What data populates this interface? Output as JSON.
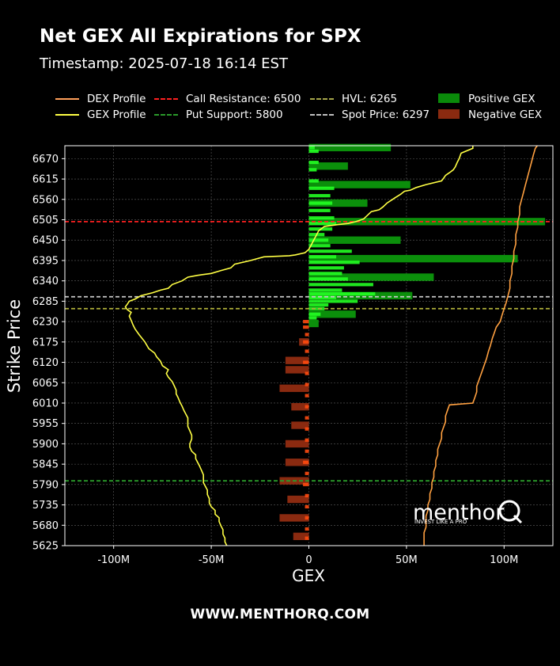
{
  "header": {
    "title": "Net GEX All Expirations for SPX",
    "subtitle": "Timestamp: 2025-07-18 16:14 EST"
  },
  "footer": {
    "website": "WWW.MENTHORQ.COM"
  },
  "logo": {
    "name": "menthor",
    "letter": "Q",
    "tagline": "INVEST LIKE A PRO"
  },
  "colors": {
    "background": "#000000",
    "dex": "#ffa040",
    "gex": "#ffff44",
    "call_resistance": "#ff2020",
    "put_support": "#2a9a2a",
    "hvl": "#b0b03a",
    "spot": "#c8c8c8",
    "positive_gex": "#0a8a0a",
    "negative_gex": "#8a2a10"
  },
  "legend": [
    {
      "label": "DEX Profile",
      "kind": "line",
      "color": "#ff9f5a"
    },
    {
      "label": "GEX Profile",
      "kind": "line",
      "color": "#ffff44"
    },
    {
      "label": "Call Resistance: 6500",
      "kind": "dash",
      "color": "#ff2020"
    },
    {
      "label": "Put Support: 5800",
      "kind": "dash",
      "color": "#2a9a2a"
    },
    {
      "label": "HVL: 6265",
      "kind": "dash",
      "color": "#a6a64a"
    },
    {
      "label": "Spot Price: 6297",
      "kind": "dash",
      "color": "#c0c0c0"
    },
    {
      "label": "Positive GEX",
      "kind": "box",
      "color": "#0a8a0a"
    },
    {
      "label": "Negative GEX",
      "kind": "box",
      "color": "#8a2a10"
    }
  ],
  "chart_data": {
    "type": "bar",
    "orientation": "horizontal",
    "xlabel": "GEX",
    "ylabel": "Strike Price",
    "xlim": [
      -125000000,
      125000000
    ],
    "ylim": [
      5625,
      6705
    ],
    "x_ticks": [
      -100000000,
      -50000000,
      0,
      50000000,
      100000000
    ],
    "x_tick_labels": [
      "-100M",
      "-50M",
      "0",
      "50M",
      "100M"
    ],
    "y_ticks": [
      5625,
      5680,
      5735,
      5790,
      5845,
      5900,
      5955,
      6010,
      6065,
      6120,
      6175,
      6230,
      6285,
      6340,
      6395,
      6450,
      6505,
      6560,
      6615,
      6670
    ],
    "grid": true,
    "levels": {
      "call_resistance": 6500,
      "put_support": 5800,
      "hvl": 6265,
      "spot_price": 6297
    },
    "aggregate_bars": [
      {
        "strike": 6700,
        "value": 42000000
      },
      {
        "strike": 6650,
        "value": 20000000
      },
      {
        "strike": 6600,
        "value": 52000000
      },
      {
        "strike": 6550,
        "value": 30000000
      },
      {
        "strike": 6500,
        "value": 121000000
      },
      {
        "strike": 6450,
        "value": 47000000
      },
      {
        "strike": 6400,
        "value": 107000000
      },
      {
        "strike": 6350,
        "value": 64000000
      },
      {
        "strike": 6300,
        "value": 53000000
      },
      {
        "strike": 6250,
        "value": 24000000
      },
      {
        "strike": 6225,
        "value": 5000000
      },
      {
        "strike": 6175,
        "value": -5000000
      },
      {
        "strike": 6125,
        "value": -12000000
      },
      {
        "strike": 6100,
        "value": -12000000
      },
      {
        "strike": 6050,
        "value": -15000000
      },
      {
        "strike": 6000,
        "value": -9000000
      },
      {
        "strike": 5950,
        "value": -9000000
      },
      {
        "strike": 5900,
        "value": -12000000
      },
      {
        "strike": 5850,
        "value": -12000000
      },
      {
        "strike": 5800,
        "value": -15000000
      },
      {
        "strike": 5750,
        "value": -11000000
      },
      {
        "strike": 5700,
        "value": -15000000
      },
      {
        "strike": 5650,
        "value": -8000000
      }
    ],
    "strike_bars": [
      {
        "strike": 6700,
        "value": 3000000
      },
      {
        "strike": 6690,
        "value": 5000000
      },
      {
        "strike": 6660,
        "value": 5000000
      },
      {
        "strike": 6640,
        "value": 4000000
      },
      {
        "strike": 6610,
        "value": 5000000
      },
      {
        "strike": 6590,
        "value": 13000000
      },
      {
        "strike": 6570,
        "value": 11000000
      },
      {
        "strike": 6550,
        "value": 12000000
      },
      {
        "strike": 6530,
        "value": 11000000
      },
      {
        "strike": 6510,
        "value": 13000000
      },
      {
        "strike": 6495,
        "value": 14000000
      },
      {
        "strike": 6480,
        "value": 12000000
      },
      {
        "strike": 6465,
        "value": 8000000
      },
      {
        "strike": 6450,
        "value": 10000000
      },
      {
        "strike": 6435,
        "value": 11000000
      },
      {
        "strike": 6420,
        "value": 22000000
      },
      {
        "strike": 6405,
        "value": 14000000
      },
      {
        "strike": 6390,
        "value": 26000000
      },
      {
        "strike": 6375,
        "value": 18000000
      },
      {
        "strike": 6360,
        "value": 17000000
      },
      {
        "strike": 6345,
        "value": 20000000
      },
      {
        "strike": 6330,
        "value": 33000000
      },
      {
        "strike": 6315,
        "value": 17000000
      },
      {
        "strike": 6305,
        "value": 34000000
      },
      {
        "strike": 6295,
        "value": 14000000
      },
      {
        "strike": 6285,
        "value": 25000000
      },
      {
        "strike": 6275,
        "value": 10000000
      },
      {
        "strike": 6265,
        "value": 8000000
      },
      {
        "strike": 6250,
        "value": 6000000
      },
      {
        "strike": 6240,
        "value": 4000000
      },
      {
        "strike": 6230,
        "value": -3000000
      },
      {
        "strike": 6215,
        "value": -3000000
      },
      {
        "strike": 6195,
        "value": -2000000
      },
      {
        "strike": 6175,
        "value": -3000000
      },
      {
        "strike": 6150,
        "value": -2000000
      },
      {
        "strike": 6120,
        "value": -3000000
      },
      {
        "strike": 6090,
        "value": -2000000
      },
      {
        "strike": 6060,
        "value": -2000000
      },
      {
        "strike": 6030,
        "value": -2000000
      },
      {
        "strike": 6000,
        "value": -2000000
      },
      {
        "strike": 5970,
        "value": -2000000
      },
      {
        "strike": 5940,
        "value": -2000000
      },
      {
        "strike": 5910,
        "value": -2000000
      },
      {
        "strike": 5880,
        "value": -2000000
      },
      {
        "strike": 5850,
        "value": -3000000
      },
      {
        "strike": 5820,
        "value": -2000000
      },
      {
        "strike": 5790,
        "value": -3000000
      },
      {
        "strike": 5760,
        "value": -2000000
      },
      {
        "strike": 5730,
        "value": -2000000
      },
      {
        "strike": 5700,
        "value": -2000000
      },
      {
        "strike": 5670,
        "value": -2000000
      },
      {
        "strike": 5645,
        "value": -2000000
      }
    ],
    "series": [
      {
        "name": "GEX Profile",
        "points": [
          [
            84000000,
            6705
          ],
          [
            84000000,
            6698
          ],
          [
            78000000,
            6685
          ],
          [
            77000000,
            6670
          ],
          [
            76000000,
            6660
          ],
          [
            75000000,
            6648
          ],
          [
            74000000,
            6640
          ],
          [
            72000000,
            6632
          ],
          [
            70000000,
            6625
          ],
          [
            69000000,
            6617
          ],
          [
            68000000,
            6610
          ],
          [
            60000000,
            6600
          ],
          [
            55000000,
            6592
          ],
          [
            52000000,
            6585
          ],
          [
            49000000,
            6582
          ],
          [
            47000000,
            6574
          ],
          [
            44000000,
            6564
          ],
          [
            42000000,
            6557
          ],
          [
            40000000,
            6550
          ],
          [
            39000000,
            6545
          ],
          [
            38000000,
            6540
          ],
          [
            36000000,
            6532
          ],
          [
            32000000,
            6527
          ],
          [
            30000000,
            6517
          ],
          [
            28000000,
            6507
          ],
          [
            24000000,
            6500
          ],
          [
            20000000,
            6495
          ],
          [
            15000000,
            6492
          ],
          [
            8000000,
            6487
          ],
          [
            5000000,
            6475
          ],
          [
            4000000,
            6465
          ],
          [
            3000000,
            6455
          ],
          [
            2000000,
            6445
          ],
          [
            1000000,
            6435
          ],
          [
            0,
            6425
          ],
          [
            -2000000,
            6416
          ],
          [
            -7000000,
            6410
          ],
          [
            -10000000,
            6408
          ],
          [
            -23000000,
            6405
          ],
          [
            -30000000,
            6395
          ],
          [
            -38000000,
            6385
          ],
          [
            -40000000,
            6375
          ],
          [
            -45000000,
            6368
          ],
          [
            -50000000,
            6360
          ],
          [
            -57000000,
            6355
          ],
          [
            -62000000,
            6350
          ],
          [
            -65000000,
            6340
          ],
          [
            -70000000,
            6330
          ],
          [
            -72000000,
            6320
          ],
          [
            -76000000,
            6315
          ],
          [
            -80000000,
            6308
          ],
          [
            -86000000,
            6300
          ],
          [
            -89000000,
            6291
          ],
          [
            -92000000,
            6285
          ],
          [
            -93000000,
            6277
          ],
          [
            -94000000,
            6270
          ],
          [
            -93000000,
            6262
          ],
          [
            -91000000,
            6255
          ],
          [
            -92000000,
            6245
          ],
          [
            -91000000,
            6233
          ],
          [
            -90000000,
            6220
          ],
          [
            -89000000,
            6210
          ],
          [
            -87000000,
            6195
          ],
          [
            -84000000,
            6175
          ],
          [
            -82000000,
            6157
          ],
          [
            -79000000,
            6145
          ],
          [
            -78000000,
            6135
          ],
          [
            -76000000,
            6123
          ],
          [
            -75000000,
            6111
          ],
          [
            -72000000,
            6100
          ],
          [
            -73000000,
            6090
          ],
          [
            -72000000,
            6080
          ],
          [
            -70000000,
            6068
          ],
          [
            -69000000,
            6057
          ],
          [
            -68000000,
            6045
          ],
          [
            -68000000,
            6035
          ],
          [
            -67000000,
            6025
          ],
          [
            -66000000,
            6012
          ],
          [
            -65000000,
            6002
          ],
          [
            -64000000,
            5990
          ],
          [
            -63000000,
            5980
          ],
          [
            -62000000,
            5970
          ],
          [
            -62000000,
            5958
          ],
          [
            -62000000,
            5947
          ],
          [
            -61000000,
            5935
          ],
          [
            -60000000,
            5923
          ],
          [
            -60000000,
            5913
          ],
          [
            -61000000,
            5900
          ],
          [
            -61000000,
            5891
          ],
          [
            -60000000,
            5880
          ],
          [
            -58000000,
            5870
          ],
          [
            -58000000,
            5860
          ],
          [
            -57000000,
            5850
          ],
          [
            -56000000,
            5840
          ],
          [
            -55000000,
            5828
          ],
          [
            -54000000,
            5816
          ],
          [
            -54000000,
            5806
          ],
          [
            -54000000,
            5795
          ],
          [
            -53000000,
            5785
          ],
          [
            -52000000,
            5775
          ],
          [
            -52000000,
            5763
          ],
          [
            -51000000,
            5752
          ],
          [
            -51000000,
            5740
          ],
          [
            -50000000,
            5730
          ],
          [
            -48000000,
            5720
          ],
          [
            -48000000,
            5710
          ],
          [
            -46000000,
            5700
          ],
          [
            -46000000,
            5690
          ],
          [
            -45000000,
            5678
          ],
          [
            -44000000,
            5668
          ],
          [
            -44000000,
            5656
          ],
          [
            -43000000,
            5645
          ],
          [
            -43000000,
            5635
          ],
          [
            -42000000,
            5625
          ]
        ]
      },
      {
        "name": "DEX Profile",
        "points": [
          [
            117000000,
            6705
          ],
          [
            116000000,
            6698
          ],
          [
            115000000,
            6680
          ],
          [
            114000000,
            6660
          ],
          [
            113000000,
            6640
          ],
          [
            112000000,
            6620
          ],
          [
            111000000,
            6600
          ],
          [
            110000000,
            6580
          ],
          [
            109000000,
            6560
          ],
          [
            108000000,
            6540
          ],
          [
            108000000,
            6520
          ],
          [
            107000000,
            6500
          ],
          [
            107000000,
            6485
          ],
          [
            106000000,
            6465
          ],
          [
            106000000,
            6440
          ],
          [
            105000000,
            6420
          ],
          [
            105000000,
            6400
          ],
          [
            104000000,
            6380
          ],
          [
            104000000,
            6360
          ],
          [
            103000000,
            6340
          ],
          [
            103000000,
            6320
          ],
          [
            102000000,
            6300
          ],
          [
            101000000,
            6280
          ],
          [
            100000000,
            6265
          ],
          [
            99000000,
            6248
          ],
          [
            98000000,
            6230
          ],
          [
            96000000,
            6215
          ],
          [
            95000000,
            6200
          ],
          [
            94000000,
            6185
          ],
          [
            93000000,
            6165
          ],
          [
            92000000,
            6150
          ],
          [
            91000000,
            6130
          ],
          [
            90000000,
            6115
          ],
          [
            89000000,
            6100
          ],
          [
            88000000,
            6085
          ],
          [
            87000000,
            6070
          ],
          [
            86000000,
            6055
          ],
          [
            86000000,
            6040
          ],
          [
            85000000,
            6025
          ],
          [
            84000000,
            6010
          ],
          [
            72000000,
            6005
          ],
          [
            71000000,
            5990
          ],
          [
            70000000,
            5975
          ],
          [
            70000000,
            5960
          ],
          [
            69000000,
            5945
          ],
          [
            68000000,
            5930
          ],
          [
            68000000,
            5915
          ],
          [
            67000000,
            5900
          ],
          [
            66000000,
            5885
          ],
          [
            66000000,
            5870
          ],
          [
            65000000,
            5855
          ],
          [
            65000000,
            5840
          ],
          [
            64000000,
            5825
          ],
          [
            64000000,
            5810
          ],
          [
            63000000,
            5795
          ],
          [
            63000000,
            5780
          ],
          [
            62000000,
            5765
          ],
          [
            62000000,
            5750
          ],
          [
            61000000,
            5735
          ],
          [
            61000000,
            5720
          ],
          [
            60000000,
            5705
          ],
          [
            60000000,
            5690
          ],
          [
            60000000,
            5675
          ],
          [
            59000000,
            5660
          ],
          [
            59000000,
            5645
          ],
          [
            59000000,
            5625
          ]
        ]
      }
    ]
  }
}
